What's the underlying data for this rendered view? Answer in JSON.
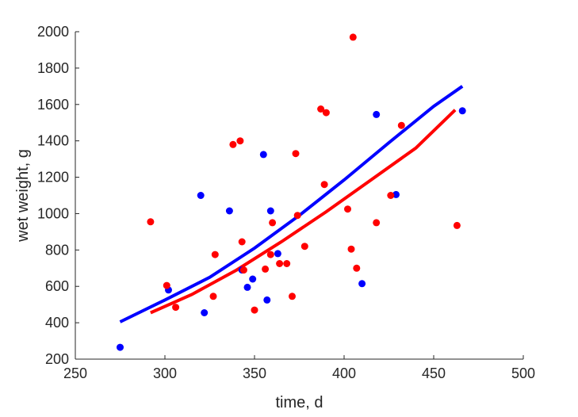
{
  "chart_data": {
    "type": "scatter",
    "title": "",
    "xlabel": "time, d",
    "ylabel": "wet weight, g",
    "xlim": [
      250,
      500
    ],
    "ylim": [
      200,
      2000
    ],
    "xticks": [
      250,
      300,
      350,
      400,
      450,
      500
    ],
    "yticks": [
      200,
      400,
      600,
      800,
      1000,
      1200,
      1400,
      1600,
      1800,
      2000
    ],
    "grid": false,
    "legend": "none",
    "series": [
      {
        "color": "#0000ff",
        "marker": "dot",
        "points": [
          [
            275,
            265
          ],
          [
            302,
            580
          ],
          [
            322,
            455
          ],
          [
            320,
            1100
          ],
          [
            336,
            1015
          ],
          [
            343,
            690
          ],
          [
            346,
            595
          ],
          [
            349,
            640
          ],
          [
            355,
            1325
          ],
          [
            357,
            525
          ],
          [
            359,
            1015
          ],
          [
            363,
            780
          ],
          [
            410,
            615
          ],
          [
            418,
            1545
          ],
          [
            429,
            1105
          ],
          [
            466,
            1565
          ]
        ]
      },
      {
        "color": "#ff0000",
        "marker": "dot",
        "points": [
          [
            292,
            955
          ],
          [
            301,
            605
          ],
          [
            306,
            485
          ],
          [
            327,
            545
          ],
          [
            328,
            775
          ],
          [
            338,
            1380
          ],
          [
            342,
            1400
          ],
          [
            343,
            845
          ],
          [
            344,
            690
          ],
          [
            350,
            470
          ],
          [
            356,
            695
          ],
          [
            359,
            775
          ],
          [
            360,
            950
          ],
          [
            364,
            725
          ],
          [
            368,
            725
          ],
          [
            371,
            545
          ],
          [
            373,
            1330
          ],
          [
            374,
            990
          ],
          [
            378,
            820
          ],
          [
            387,
            1575
          ],
          [
            389,
            1160
          ],
          [
            390,
            1555
          ],
          [
            402,
            1025
          ],
          [
            404,
            805
          ],
          [
            405,
            1970
          ],
          [
            407,
            700
          ],
          [
            418,
            950
          ],
          [
            426,
            1100
          ],
          [
            432,
            1485
          ],
          [
            463,
            935
          ]
        ]
      },
      {
        "color": "#0000ff",
        "marker": "line",
        "points": [
          [
            275,
            405
          ],
          [
            300,
            525
          ],
          [
            325,
            650
          ],
          [
            350,
            810
          ],
          [
            375,
            990
          ],
          [
            400,
            1185
          ],
          [
            425,
            1390
          ],
          [
            450,
            1590
          ],
          [
            466,
            1700
          ]
        ]
      },
      {
        "color": "#ff0000",
        "marker": "line",
        "points": [
          [
            292,
            455
          ],
          [
            315,
            555
          ],
          [
            340,
            690
          ],
          [
            365,
            845
          ],
          [
            390,
            1010
          ],
          [
            415,
            1185
          ],
          [
            440,
            1360
          ],
          [
            462,
            1570
          ]
        ]
      }
    ]
  }
}
